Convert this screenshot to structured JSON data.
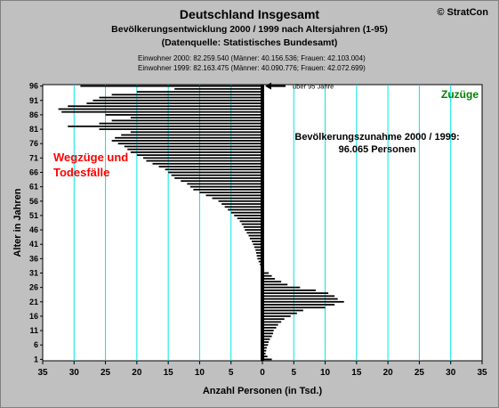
{
  "header": {
    "title": "Deutschland Insgesamt",
    "subtitle1": "Bevölkerungsentwicklung 2000 / 1999  nach Altersjahren (1-95)",
    "subtitle2": "(Datenquelle: Statistisches Bundesamt)",
    "pop2000": "Einwohner 2000: 82.259.540  (Männer: 40.156.536; Frauen: 42.103.004)",
    "pop1999": "Einwohner 1999: 82.163.475  (Männer: 40.090.776; Frauen: 42.072.699)",
    "brand": "© StratCon"
  },
  "chart_data": {
    "type": "bar",
    "orientation": "horizontal",
    "xlabel": "Anzahl Personen (in Tsd.)",
    "ylabel": "Alter in Jahren",
    "xlim": [
      -35,
      35
    ],
    "ylim": [
      1,
      96
    ],
    "x_tick_labels": [
      "35",
      "30",
      "25",
      "20",
      "15",
      "10",
      "5",
      "0",
      "5",
      "10",
      "15",
      "20",
      "25",
      "30",
      "35"
    ],
    "y_ticks": [
      1,
      6,
      11,
      16,
      21,
      26,
      31,
      36,
      41,
      46,
      51,
      56,
      61,
      66,
      71,
      76,
      81,
      86,
      91,
      96
    ],
    "grid": true,
    "annotations": {
      "left_label_line1": "Wegzüge und",
      "left_label_line2": "Todesfälle",
      "right_label": "Zuzüge",
      "summary_line1": "Bevölkerungszunahme 2000 / 1999:",
      "summary_line2": "96.065 Personen",
      "arrow_label": "über 95 Jahre"
    },
    "ages": [
      1,
      2,
      3,
      4,
      5,
      6,
      7,
      8,
      9,
      10,
      11,
      12,
      13,
      14,
      15,
      16,
      17,
      18,
      19,
      20,
      21,
      22,
      23,
      24,
      25,
      26,
      27,
      28,
      29,
      30,
      31,
      32,
      33,
      34,
      35,
      36,
      37,
      38,
      39,
      40,
      41,
      42,
      43,
      44,
      45,
      46,
      47,
      48,
      49,
      50,
      51,
      52,
      53,
      54,
      55,
      56,
      57,
      58,
      59,
      60,
      61,
      62,
      63,
      64,
      65,
      66,
      67,
      68,
      69,
      70,
      71,
      72,
      73,
      74,
      75,
      76,
      77,
      78,
      79,
      80,
      81,
      82,
      83,
      84,
      85,
      86,
      87,
      88,
      89,
      90,
      91,
      92,
      93,
      94,
      95,
      96
    ],
    "values": [
      1.5,
      0.8,
      0.5,
      0.6,
      0.7,
      0.9,
      1.0,
      1.2,
      1.5,
      1.7,
      1.8,
      2.2,
      2.5,
      3.0,
      3.5,
      4.5,
      5.5,
      6.5,
      10.0,
      11.5,
      13.0,
      12.0,
      11.5,
      10.5,
      8.5,
      6.0,
      4.0,
      3.0,
      2.0,
      1.5,
      1.0,
      0.3,
      -0.2,
      -0.4,
      -0.6,
      -0.8,
      -0.9,
      -1.0,
      -1.1,
      -1.3,
      -1.5,
      -1.7,
      -2.0,
      -2.2,
      -2.5,
      -2.8,
      -3.0,
      -3.3,
      -3.6,
      -4.0,
      -4.5,
      -5.0,
      -5.5,
      -6.0,
      -6.5,
      -7.0,
      -8.0,
      -9.0,
      -10.0,
      -11.0,
      -11.5,
      -12.0,
      -13.0,
      -14.0,
      -14.5,
      -15.0,
      -15.5,
      -16.5,
      -17.5,
      -18.5,
      -19.0,
      -20.0,
      -21.0,
      -21.5,
      -22.0,
      -23.0,
      -24.0,
      -23.5,
      -22.5,
      -21.0,
      -26.0,
      -31.0,
      -26.0,
      -24.0,
      -21.0,
      -25.0,
      -32.0,
      -32.5,
      -31.0,
      -28.0,
      -27.0,
      -26.0,
      -24.0,
      -20.0,
      -14.0,
      -29.0
    ]
  }
}
